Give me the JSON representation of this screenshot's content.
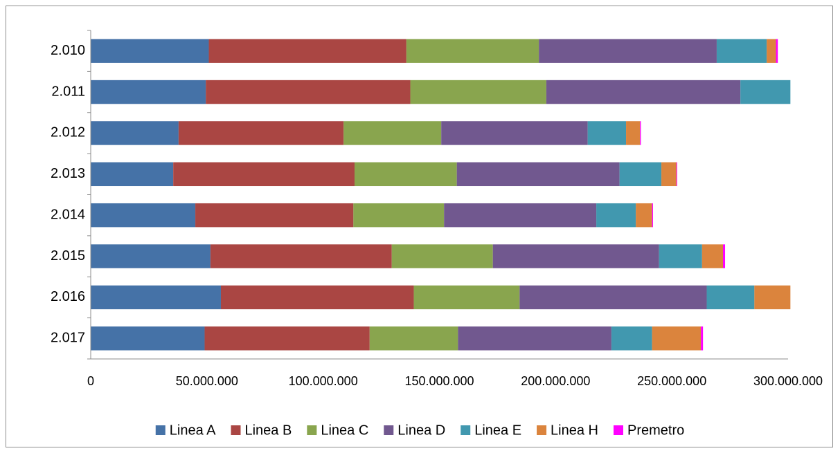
{
  "chart_data": {
    "type": "bar",
    "orientation": "horizontal",
    "stacked": true,
    "categories": [
      "2.010",
      "2.011",
      "2.012",
      "2.013",
      "2.014",
      "2.015",
      "2.016",
      "2.017"
    ],
    "series": [
      {
        "name": "Linea A",
        "color": "#4572A7",
        "values": [
          50800000,
          49500000,
          37800000,
          35500000,
          45000000,
          51500000,
          56000000,
          49000000
        ]
      },
      {
        "name": "Linea B",
        "color": "#AA4643",
        "values": [
          85000000,
          88000000,
          71000000,
          78000000,
          68000000,
          78000000,
          83000000,
          71000000
        ]
      },
      {
        "name": "Linea C",
        "color": "#89A54E",
        "values": [
          57000000,
          58500000,
          42000000,
          44000000,
          39000000,
          43500000,
          45500000,
          38000000
        ]
      },
      {
        "name": "Linea D",
        "color": "#71588F",
        "values": [
          76500000,
          83500000,
          63000000,
          70000000,
          65500000,
          71500000,
          80500000,
          66000000
        ]
      },
      {
        "name": "Linea E",
        "color": "#4198AF",
        "values": [
          21500000,
          21500000,
          16500000,
          18000000,
          17000000,
          18500000,
          20500000,
          17500000
        ]
      },
      {
        "name": "Linea H",
        "color": "#DB843D",
        "values": [
          4000000,
          0,
          6000000,
          6500000,
          7000000,
          9000000,
          15500000,
          21000000
        ]
      },
      {
        "name": "Premetro",
        "color": "#FF00FF",
        "values": [
          800000,
          0,
          400000,
          300000,
          400000,
          900000,
          0,
          900000
        ]
      }
    ],
    "xlim": [
      0,
      300000000
    ],
    "xticks": [
      0,
      50000000,
      100000000,
      150000000,
      200000000,
      250000000,
      300000000
    ],
    "xtick_labels": [
      "0",
      "50.000.000",
      "100.000.000",
      "150.000.000",
      "200.000.000",
      "250.000.000",
      "300.000.000"
    ],
    "title": "",
    "xlabel": "",
    "ylabel": "",
    "grid": false,
    "legend_position": "bottom"
  }
}
